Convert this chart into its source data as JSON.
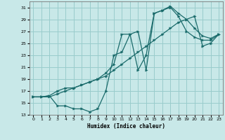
{
  "xlabel": "Humidex (Indice chaleur)",
  "bg_color": "#c8e8e8",
  "grid_color": "#99cccc",
  "line_color": "#1a6b6b",
  "xlim": [
    -0.5,
    23.5
  ],
  "ylim": [
    13,
    32
  ],
  "xticks": [
    0,
    1,
    2,
    3,
    4,
    5,
    6,
    7,
    8,
    9,
    10,
    11,
    12,
    13,
    14,
    15,
    16,
    17,
    18,
    19,
    20,
    21,
    22,
    23
  ],
  "yticks": [
    13,
    15,
    17,
    19,
    21,
    23,
    25,
    27,
    29,
    31
  ],
  "line1_x": [
    0,
    1,
    2,
    3,
    4,
    5,
    6,
    7,
    8,
    9,
    10,
    11,
    12,
    13,
    14,
    15,
    16,
    17,
    18,
    19,
    20,
    21,
    22,
    23
  ],
  "line1_y": [
    16.0,
    16.0,
    16.2,
    14.5,
    14.5,
    14.0,
    14.0,
    13.5,
    14.0,
    17.0,
    23.0,
    23.5,
    26.5,
    20.5,
    23.0,
    30.0,
    30.5,
    31.0,
    29.5,
    27.0,
    26.0,
    25.5,
    25.5,
    26.5
  ],
  "line2_x": [
    0,
    1,
    2,
    3,
    4,
    5,
    6,
    7,
    8,
    9,
    10,
    11,
    12,
    13,
    14,
    15,
    16,
    17,
    18,
    19,
    20,
    21,
    22,
    23
  ],
  "line2_y": [
    16.0,
    16.0,
    16.0,
    16.5,
    17.0,
    17.5,
    18.0,
    18.5,
    19.0,
    19.5,
    20.5,
    21.5,
    22.5,
    23.5,
    24.5,
    25.5,
    26.5,
    27.5,
    28.5,
    29.0,
    29.5,
    24.5,
    25.0,
    26.5
  ],
  "line3_x": [
    0,
    1,
    2,
    3,
    4,
    5,
    6,
    7,
    8,
    9,
    10,
    11,
    12,
    13,
    14,
    15,
    16,
    17,
    18,
    19,
    20,
    21,
    22,
    23
  ],
  "line3_y": [
    16.0,
    16.0,
    16.2,
    17.0,
    17.5,
    17.5,
    18.0,
    18.5,
    19.0,
    20.0,
    21.5,
    26.5,
    26.5,
    27.0,
    20.5,
    30.0,
    30.5,
    31.2,
    30.0,
    29.0,
    27.5,
    26.2,
    25.8,
    26.5
  ]
}
